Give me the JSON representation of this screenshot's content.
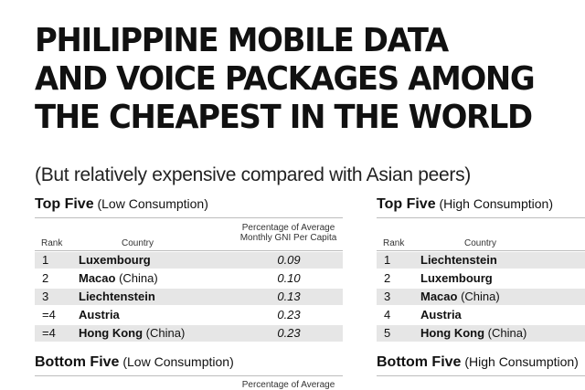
{
  "title_lines": [
    "PHILIPPINE MOBILE DATA",
    "AND VOICE PACKAGES AMONG",
    "THE CHEAPEST IN THE WORLD"
  ],
  "subtitle": "(But relatively expensive compared with Asian peers)",
  "tables": {
    "left_top": {
      "heading": "Top Five",
      "heading_note": "(Low Consumption)",
      "col_rank": "Rank",
      "col_country": "Country",
      "col_pct_line1": "Percentage of Average",
      "col_pct_line2": "Monthly GNI Per Capita",
      "rows": [
        {
          "rank": "1",
          "country": "Luxembourg",
          "note": "",
          "pct": "0.09"
        },
        {
          "rank": "2",
          "country": "Macao",
          "note": "(China)",
          "pct": "0.10"
        },
        {
          "rank": "3",
          "country": "Liechtenstein",
          "note": "",
          "pct": "0.13"
        },
        {
          "rank": "=4",
          "country": "Austria",
          "note": "",
          "pct": "0.23"
        },
        {
          "rank": "=4",
          "country": "Hong Kong",
          "note": "(China)",
          "pct": "0.23"
        }
      ]
    },
    "right_top": {
      "heading": "Top Five",
      "heading_note": "(High Consumption)",
      "col_rank": "Rank",
      "col_country": "Country",
      "rows": [
        {
          "rank": "1",
          "country": "Liechtenstein",
          "note": ""
        },
        {
          "rank": "2",
          "country": "Luxembourg",
          "note": ""
        },
        {
          "rank": "3",
          "country": "Macao",
          "note": "(China)"
        },
        {
          "rank": "4",
          "country": "Austria",
          "note": ""
        },
        {
          "rank": "5",
          "country": "Hong Kong",
          "note": "(China)"
        }
      ]
    },
    "left_bottom": {
      "heading": "Bottom Five",
      "heading_note": "(Low Consumption)",
      "col_pct_line1": "Percentage of Average"
    },
    "right_bottom": {
      "heading": "Bottom Five",
      "heading_note": "(High Consumption)"
    }
  },
  "colors": {
    "text": "#111111",
    "row_shade": "#e6e6e6",
    "rule": "#bdbdbd"
  }
}
